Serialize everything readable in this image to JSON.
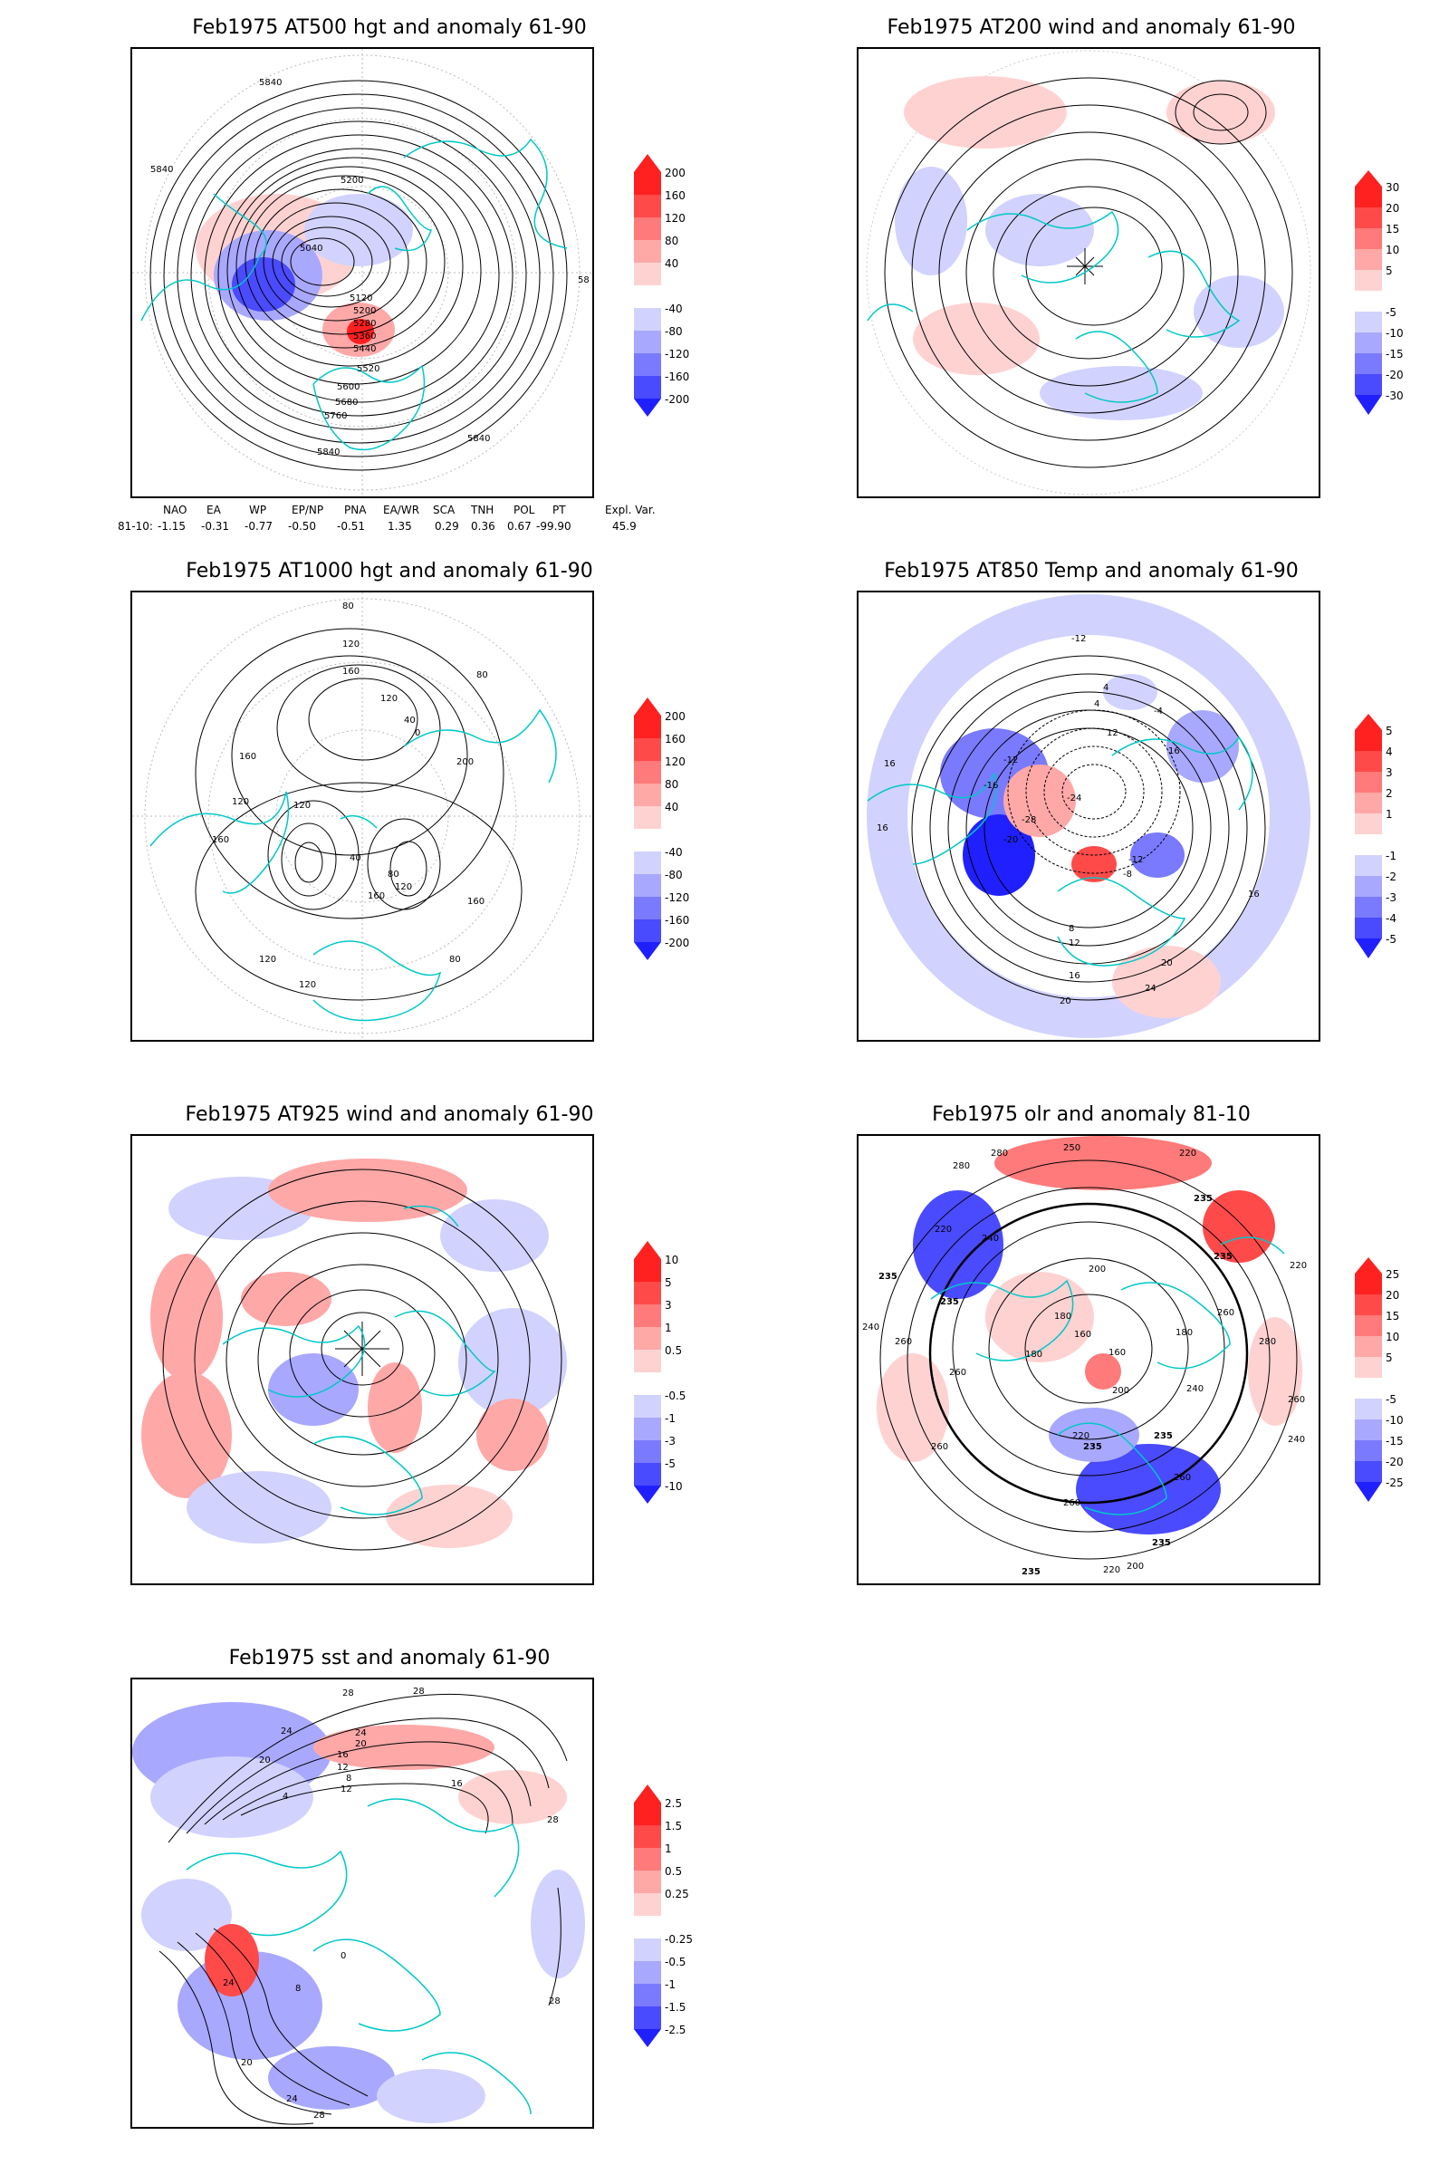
{
  "panels": [
    {
      "id": "p1",
      "title": "Feb1975 AT500 hgt and anomaly 61-90",
      "colorbar": [
        "200",
        "160",
        "120",
        "80",
        "40",
        "-40",
        "-80",
        "-120",
        "-160",
        "-200"
      ],
      "contour_labels": [
        "5840",
        "5840",
        "5200",
        "5040",
        "5120",
        "5200",
        "5280",
        "5360",
        "5440",
        "5520",
        "5600",
        "5680",
        "5760",
        "5840",
        "5840",
        "58"
      ]
    },
    {
      "id": "p2",
      "title": "Feb1975 AT200 wind and anomaly 61-90",
      "colorbar": [
        "30",
        "20",
        "15",
        "10",
        "5",
        "-5",
        "-10",
        "-15",
        "-20",
        "-30"
      ],
      "contour_labels": []
    },
    {
      "id": "p3",
      "title": "Feb1975 AT1000 hgt and anomaly 61-90",
      "colorbar": [
        "200",
        "160",
        "120",
        "80",
        "40",
        "-40",
        "-80",
        "-120",
        "-160",
        "-200"
      ],
      "contour_labels": [
        "80",
        "120",
        "160",
        "120",
        "40",
        "0",
        "160",
        "80",
        "200",
        "120",
        "120",
        "160",
        "40",
        "80",
        "120",
        "160",
        "160",
        "120",
        "80",
        "120"
      ]
    },
    {
      "id": "p4",
      "title": "Feb1975 AT850 Temp and anomaly 61-90",
      "colorbar": [
        "5",
        "4",
        "3",
        "2",
        "1",
        "-1",
        "-2",
        "-3",
        "-4",
        "-5"
      ],
      "contour_labels": [
        "-12",
        "-12",
        "-16",
        "-24",
        "-28",
        "-20",
        "-12",
        "-8",
        "16",
        "16",
        "16",
        "8",
        "12",
        "16",
        "20",
        "24",
        "20",
        "4",
        "4",
        "12",
        "16",
        "-4"
      ]
    },
    {
      "id": "p5",
      "title": "Feb1975 AT925 wind and anomaly 61-90",
      "colorbar": [
        "10",
        "5",
        "3",
        "1",
        "0.5",
        "-0.5",
        "-1",
        "-3",
        "-5",
        "-10"
      ],
      "contour_labels": []
    },
    {
      "id": "p6",
      "title": "Feb1975 olr and anomaly 81-10",
      "colorbar": [
        "25",
        "20",
        "15",
        "10",
        "5",
        "-5",
        "-10",
        "-15",
        "-20",
        "-25"
      ],
      "contour_labels": [
        "280",
        "280",
        "250",
        "220",
        "235",
        "240",
        "220",
        "235",
        "235",
        "240",
        "200",
        "180",
        "160",
        "180",
        "160",
        "180",
        "200",
        "220",
        "235",
        "235",
        "260",
        "260",
        "260",
        "260",
        "260",
        "235",
        "235",
        "260",
        "220",
        "200",
        "240",
        "260",
        "280",
        "240",
        "220",
        "235"
      ]
    },
    {
      "id": "p7",
      "title": "Feb1975 sst and anomaly 61-90",
      "colorbar": [
        "2.5",
        "1.5",
        "1",
        "0.5",
        "0.25",
        "-0.25",
        "-0.5",
        "-1",
        "-1.5",
        "-2.5"
      ],
      "contour_labels": [
        "28",
        "28",
        "24",
        "20",
        "24",
        "20",
        "16",
        "12",
        "8",
        "4",
        "16",
        "12",
        "24",
        "8",
        "0",
        "20",
        "24",
        "28",
        "28",
        "28"
      ]
    }
  ],
  "indices": {
    "headers": [
      "NAO",
      "EA",
      "WP",
      "EP/NP",
      "PNA",
      "EA/WR",
      "SCA",
      "TNH",
      "POL",
      "PT",
      "Expl. Var."
    ],
    "row_label": "81-10:",
    "values": [
      "-1.15",
      "-0.31",
      "-0.77",
      "-0.50",
      "-0.51",
      "1.35",
      "0.29",
      "0.36",
      "0.67",
      "-99.90",
      "45.9"
    ]
  },
  "colors": {
    "coast": "#00c8c8",
    "pos_scale": [
      "#ff2020",
      "#ff4a4a",
      "#ff7a7a",
      "#ffa8a8",
      "#ffd2d2"
    ],
    "neg_scale": [
      "#d2d2ff",
      "#a8a8ff",
      "#7a7aff",
      "#4a4aff",
      "#2020ff"
    ]
  }
}
